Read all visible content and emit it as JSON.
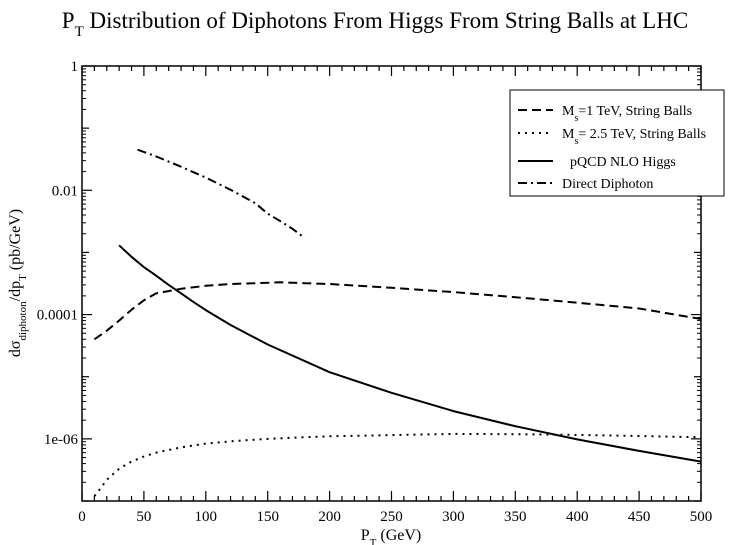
{
  "chart_data": {
    "type": "line",
    "title": {
      "prefix": "P",
      "prefix_sub": "T",
      "rest": " Distribution of Diphotons From Higgs From String Balls at LHC"
    },
    "xlabel": {
      "base": "P",
      "sub": "T",
      "rest": " (GeV)"
    },
    "ylabel": {
      "d1": "dσ",
      "sub1": "diphoton",
      "mid": "/dp",
      "sub2": "T",
      "rest": "  (pb/GeV)"
    },
    "xlim": [
      0,
      500
    ],
    "ylim": [
      1e-07,
      1
    ],
    "y_scale": "log",
    "x_ticks": [
      0,
      50,
      100,
      150,
      200,
      250,
      300,
      350,
      400,
      450,
      500
    ],
    "x_tick_labels": [
      "0",
      "50",
      "100",
      "150",
      "200",
      "250",
      "300",
      "350",
      "400",
      "450",
      "500"
    ],
    "y_ticks": [
      1e-06,
      0.0001,
      0.01,
      1
    ],
    "y_tick_labels": [
      "1e-06",
      "0.0001",
      "0.01",
      "1"
    ],
    "grid": false,
    "legend_position": "top-right",
    "series": [
      {
        "legend": {
          "base": "M",
          "sub": "s",
          "rest": "=1 TeV, String Balls"
        },
        "line_style": "dashed",
        "color": "#000000",
        "x": [
          10,
          20,
          30,
          40,
          50,
          60,
          80,
          100,
          120,
          140,
          160,
          180,
          200,
          250,
          300,
          350,
          400,
          450,
          500
        ],
        "y": [
          4e-05,
          5.5e-05,
          8e-05,
          0.00012,
          0.00017,
          0.00022,
          0.00026,
          0.00029,
          0.00031,
          0.00032,
          0.00033,
          0.00032,
          0.00031,
          0.00027,
          0.00023,
          0.00019,
          0.000155,
          0.000125,
          8.5e-05
        ]
      },
      {
        "legend": {
          "base": "M",
          "sub": "s",
          "rest": "= 2.5 TeV, String Balls"
        },
        "line_style": "dotted",
        "color": "#000000",
        "x": [
          10,
          15,
          20,
          30,
          40,
          50,
          60,
          80,
          100,
          125,
          150,
          175,
          200,
          250,
          300,
          350,
          400,
          450,
          500
        ],
        "y": [
          1.2e-07,
          1.6e-07,
          2.2e-07,
          3.3e-07,
          4.3e-07,
          5.2e-07,
          6e-07,
          7.3e-07,
          8.4e-07,
          9.3e-07,
          1e-06,
          1.05e-06,
          1.1e-06,
          1.15e-06,
          1.2e-06,
          1.19e-06,
          1.16e-06,
          1.11e-06,
          1.06e-06
        ]
      },
      {
        "legend": {
          "base": "pQCD NLO Higgs",
          "sub": "",
          "rest": ""
        },
        "line_style": "solid",
        "color": "#000000",
        "x": [
          30,
          40,
          50,
          60,
          70,
          80,
          90,
          100,
          120,
          150,
          200,
          250,
          300,
          350,
          400,
          450,
          500
        ],
        "y": [
          0.0013,
          0.00085,
          0.00058,
          0.00042,
          0.0003,
          0.00022,
          0.00016,
          0.000118,
          6.8e-05,
          3.3e-05,
          1.18e-05,
          5.5e-06,
          2.8e-06,
          1.6e-06,
          9.8e-07,
          6.4e-07,
          4.3e-07
        ]
      },
      {
        "legend": {
          "base": "Direct Diphoton",
          "sub": "",
          "rest": ""
        },
        "line_style": "dashdot",
        "color": "#000000",
        "x": [
          45,
          60,
          80,
          100,
          120,
          140,
          150,
          160,
          170,
          180
        ],
        "y": [
          0.045,
          0.035,
          0.024,
          0.016,
          0.0102,
          0.0062,
          0.0042,
          0.0032,
          0.0024,
          0.0017
        ]
      }
    ]
  }
}
